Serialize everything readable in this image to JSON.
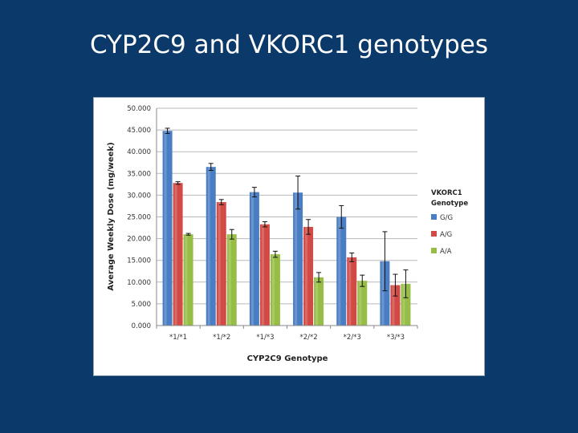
{
  "slide": {
    "title": "CYP2C9 and VKORC1 genotypes"
  },
  "chart_data": {
    "type": "bar",
    "xlabel": "CYP2C9 Genotype",
    "ylabel": "Average Weekly Dose (mg/week)",
    "ylim": [
      0,
      50
    ],
    "ytick_labels": [
      "0.000",
      "5.000",
      "10.000",
      "15.000",
      "20.000",
      "25.000",
      "30.000",
      "35.000",
      "40.000",
      "45.000",
      "50.000"
    ],
    "grid": true,
    "legend_position": "right",
    "legend_title": "VKORC1 Genotype",
    "categories": [
      "*1/*1",
      "*1/*2",
      "*1/*3",
      "*2/*2",
      "*2/*3",
      "*3/*3"
    ],
    "series": [
      {
        "name": "G/G",
        "color": "#4a7ec4",
        "values": [
          44.8,
          36.5,
          30.7,
          30.6,
          25.0,
          14.8
        ],
        "errors": [
          0.6,
          0.8,
          1.1,
          3.8,
          2.6,
          6.8
        ]
      },
      {
        "name": "A/G",
        "color": "#d24a45",
        "values": [
          32.8,
          28.4,
          23.3,
          22.7,
          15.7,
          9.3
        ],
        "errors": [
          0.3,
          0.6,
          0.6,
          1.7,
          1.0,
          2.5
        ]
      },
      {
        "name": "A/A",
        "color": "#96bd45",
        "values": [
          21.0,
          21.0,
          16.4,
          11.1,
          10.3,
          9.6
        ],
        "errors": [
          0.2,
          1.1,
          0.7,
          1.1,
          1.3,
          3.2
        ]
      }
    ]
  }
}
